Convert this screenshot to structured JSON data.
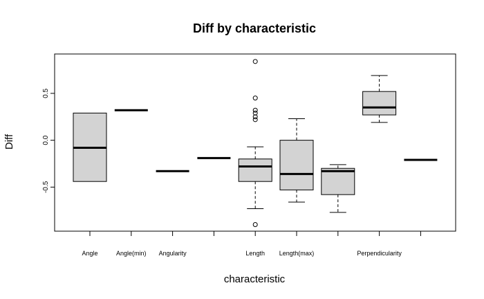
{
  "chart_data": {
    "type": "boxplot",
    "title": "Diff by characteristic",
    "xlabel": "characteristic",
    "ylabel": "Diff",
    "ylim": [
      -0.97,
      0.92
    ],
    "yticks": [
      {
        "value": 0.5,
        "label": "0.5"
      },
      {
        "value": 0.0,
        "label": "0.0"
      },
      {
        "value": -0.5,
        "label": "-0.5"
      }
    ],
    "categories": [
      "Angle",
      "Angle(min)",
      "Angularity",
      "",
      "Length",
      "Length(max)",
      "",
      "Perpendicularity",
      ""
    ],
    "boxes": [
      {
        "category": "Angle",
        "min": -0.44,
        "q1": -0.44,
        "median": -0.08,
        "q3": 0.29,
        "max": 0.29,
        "outliers": []
      },
      {
        "category": "Angle(min)",
        "min": 0.32,
        "q1": 0.32,
        "median": 0.32,
        "q3": 0.32,
        "max": 0.32,
        "outliers": []
      },
      {
        "category": "Angularity",
        "min": -0.33,
        "q1": -0.33,
        "median": -0.33,
        "q3": -0.33,
        "max": -0.33,
        "outliers": []
      },
      {
        "category": "",
        "min": -0.19,
        "q1": -0.19,
        "median": -0.19,
        "q3": -0.19,
        "max": -0.19,
        "outliers": []
      },
      {
        "category": "Length",
        "min": -0.73,
        "q1": -0.44,
        "median": -0.28,
        "q3": -0.2,
        "max": -0.07,
        "outliers": [
          0.84,
          0.45,
          0.32,
          0.29,
          0.25,
          0.22,
          -0.9
        ]
      },
      {
        "category": "Length(max)",
        "min": -0.66,
        "q1": -0.53,
        "median": -0.36,
        "q3": 0.0,
        "max": 0.23,
        "outliers": []
      },
      {
        "category": "",
        "min": -0.77,
        "q1": -0.58,
        "median": -0.33,
        "q3": -0.3,
        "max": -0.26,
        "outliers": []
      },
      {
        "category": "Perpendicularity",
        "min": 0.19,
        "q1": 0.27,
        "median": 0.35,
        "q3": 0.52,
        "max": 0.69,
        "outliers": []
      },
      {
        "category": "",
        "min": -0.21,
        "q1": -0.21,
        "median": -0.21,
        "q3": -0.21,
        "max": -0.21,
        "outliers": []
      }
    ],
    "box_fill": "#d3d3d3",
    "line_color": "#000000",
    "grid": false,
    "legend": "none"
  }
}
